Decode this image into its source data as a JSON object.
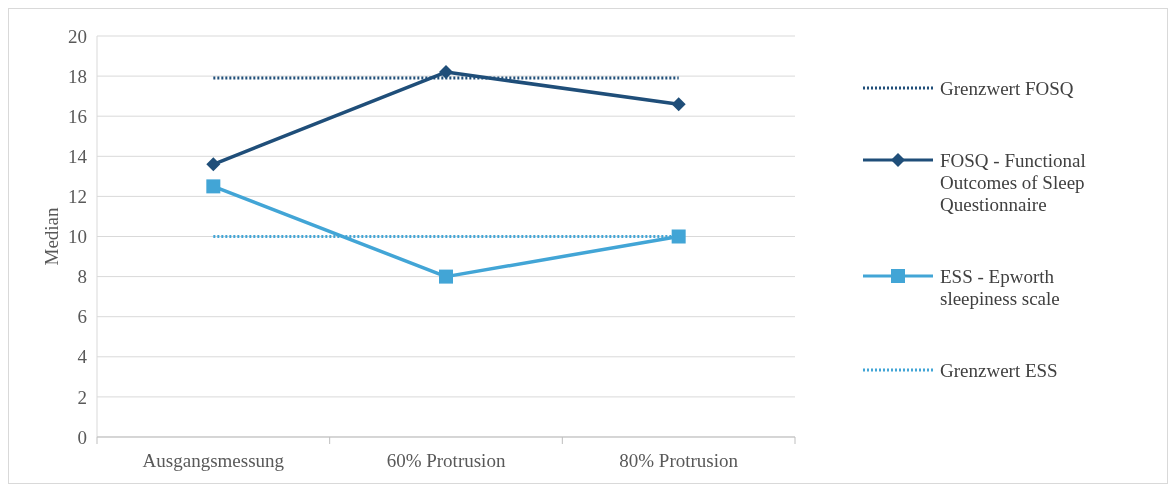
{
  "chart_data": {
    "type": "line",
    "ylabel": "Median",
    "categories": [
      "Ausgangsmessung",
      "60% Protrusion",
      "80% Protrusion"
    ],
    "ylim": [
      0,
      20
    ],
    "yticks": [
      0,
      2,
      4,
      6,
      8,
      10,
      12,
      14,
      16,
      18,
      20
    ],
    "grid": "y",
    "legend": "right",
    "series": [
      {
        "name": "Grenzwert FOSQ",
        "color": "#1f4e79",
        "values": [
          17.9,
          17.9,
          17.9
        ],
        "line_style": "dotted",
        "marker": "none"
      },
      {
        "name": "FOSQ - Functional Outcomes of Sleep Questionnaire",
        "color": "#1f4e79",
        "values": [
          13.6,
          18.2,
          16.6
        ],
        "line_style": "solid",
        "marker": "diamond"
      },
      {
        "name": "ESS - Epworth sleepiness scale",
        "color": "#42a5d6",
        "values": [
          12.5,
          8,
          10
        ],
        "line_style": "solid",
        "marker": "square"
      },
      {
        "name": "Grenzwert ESS",
        "color": "#42a5d6",
        "values": [
          10,
          10,
          10
        ],
        "line_style": "dotted",
        "marker": "none"
      }
    ]
  }
}
